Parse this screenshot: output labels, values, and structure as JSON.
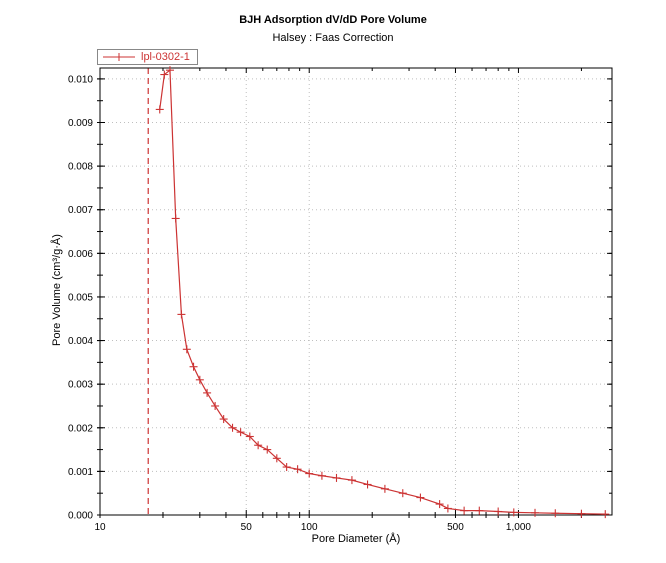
{
  "title": "BJH Adsorption dV/dD Pore Volume",
  "subtitle": "Halsey : Faas Correction",
  "legend": {
    "label": "lpl-0302-1",
    "color": "#cc3333"
  },
  "chart_data": {
    "type": "line",
    "title": "BJH Adsorption dV/dD Pore Volume",
    "subtitle": "Halsey : Faas Correction",
    "xlabel": "Pore Diameter (Å)",
    "ylabel": "Pore Volume (cm³/g·Å)",
    "x_scale": "log",
    "xlim": [
      10,
      2800
    ],
    "ylim": [
      0,
      0.01025
    ],
    "x_ticks": [
      {
        "value": 10,
        "label": "10"
      },
      {
        "value": 50,
        "label": "50"
      },
      {
        "value": 100,
        "label": "100"
      },
      {
        "value": 500,
        "label": "500"
      },
      {
        "value": 1000,
        "label": "1,000"
      }
    ],
    "x_minor_ticks": [
      20,
      30,
      40,
      60,
      70,
      80,
      90,
      200,
      300,
      400,
      600,
      700,
      800,
      900,
      2000
    ],
    "x_grid": [
      50,
      100,
      500,
      1000
    ],
    "y_ticks": [
      0,
      0.001,
      0.002,
      0.003,
      0.004,
      0.005,
      0.006,
      0.007,
      0.008,
      0.009,
      0.01
    ],
    "y_minor_step": 0.0005,
    "grid_color": "#bfbfbf",
    "axis_color": "#000000",
    "reference_line": {
      "x": 17,
      "color": "#cc3333",
      "style": "dashed"
    },
    "legend_position": "top-left",
    "series": [
      {
        "name": "lpl-0302-1",
        "color": "#cc3333",
        "marker": "plus",
        "x": [
          19.3,
          20.3,
          21.6,
          23.0,
          24.5,
          26.0,
          28.0,
          30.0,
          32.5,
          35.5,
          39.0,
          43.0,
          47.0,
          52.0,
          57.0,
          63.0,
          70.0,
          78.0,
          88.0,
          100,
          115,
          135,
          160,
          190,
          230,
          280,
          340,
          420,
          460,
          550,
          650,
          800,
          950,
          1200,
          1500,
          2000,
          2600
        ],
        "y": [
          0.0093,
          0.0101,
          0.0102,
          0.0068,
          0.0046,
          0.0038,
          0.0034,
          0.0031,
          0.0028,
          0.0025,
          0.0022,
          0.002,
          0.0019,
          0.0018,
          0.0016,
          0.0015,
          0.0013,
          0.0011,
          0.00105,
          0.00095,
          0.0009,
          0.00085,
          0.0008,
          0.0007,
          0.0006,
          0.0005,
          0.0004,
          0.00025,
          0.00015,
          0.0001,
          0.0001,
          8e-05,
          6e-05,
          5e-05,
          4e-05,
          3e-05,
          2e-05
        ]
      }
    ]
  }
}
